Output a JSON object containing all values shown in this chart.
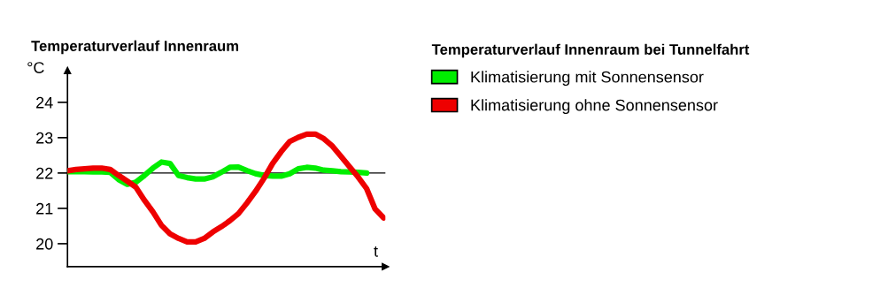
{
  "chart_data": {
    "type": "line",
    "title": "Temperaturverlauf Innenraum",
    "ylabel": "°C",
    "xlabel": "t",
    "legend_title": "Temperaturverlauf Innenraum bei Tunnelfahrt",
    "categories": [
      null,
      null,
      null,
      null,
      null,
      null,
      null,
      null,
      null,
      null,
      null,
      null,
      null,
      null,
      null,
      null,
      null,
      null,
      null,
      null,
      null,
      null,
      null,
      null,
      null,
      null,
      null,
      null,
      null,
      null,
      null,
      null,
      null,
      null,
      null,
      null,
      null,
      null
    ],
    "series": [
      {
        "name": "Klimatisierung mit Sonnensensor",
        "color": "#00ee00",
        "values": [
          22.04,
          22.04,
          22.04,
          22.03,
          22.03,
          22.02,
          21.81,
          21.68,
          21.74,
          21.93,
          22.14,
          22.31,
          22.27,
          21.93,
          21.87,
          21.83,
          21.83,
          21.89,
          22.02,
          22.16,
          22.17,
          22.07,
          21.98,
          21.93,
          21.91,
          21.91,
          21.98,
          22.12,
          22.16,
          22.14,
          22.08,
          22.06,
          22.04,
          22.03,
          22.02,
          22.0,
          null,
          null
        ]
      },
      {
        "name": "Klimatisierung ohne Sonnensensor",
        "color": "#ee0000",
        "values": [
          22.06,
          22.1,
          22.12,
          22.14,
          22.14,
          22.1,
          21.93,
          21.77,
          21.6,
          21.23,
          20.9,
          20.52,
          20.28,
          20.15,
          20.05,
          20.05,
          20.15,
          20.33,
          20.48,
          20.65,
          20.85,
          21.15,
          21.48,
          21.85,
          22.27,
          22.6,
          22.89,
          23.01,
          23.1,
          23.1,
          22.97,
          22.76,
          22.47,
          22.18,
          21.89,
          21.56,
          20.98,
          20.73
        ]
      }
    ],
    "ylim": [
      19.35,
      24.9
    ],
    "yticks": [
      20,
      21,
      22,
      23,
      24
    ],
    "ref_lines": [
      {
        "axis": "y",
        "value": 22,
        "color": "#000000"
      }
    ],
    "grid": false,
    "legend": "right",
    "marker": "none",
    "line_style": "solid"
  }
}
